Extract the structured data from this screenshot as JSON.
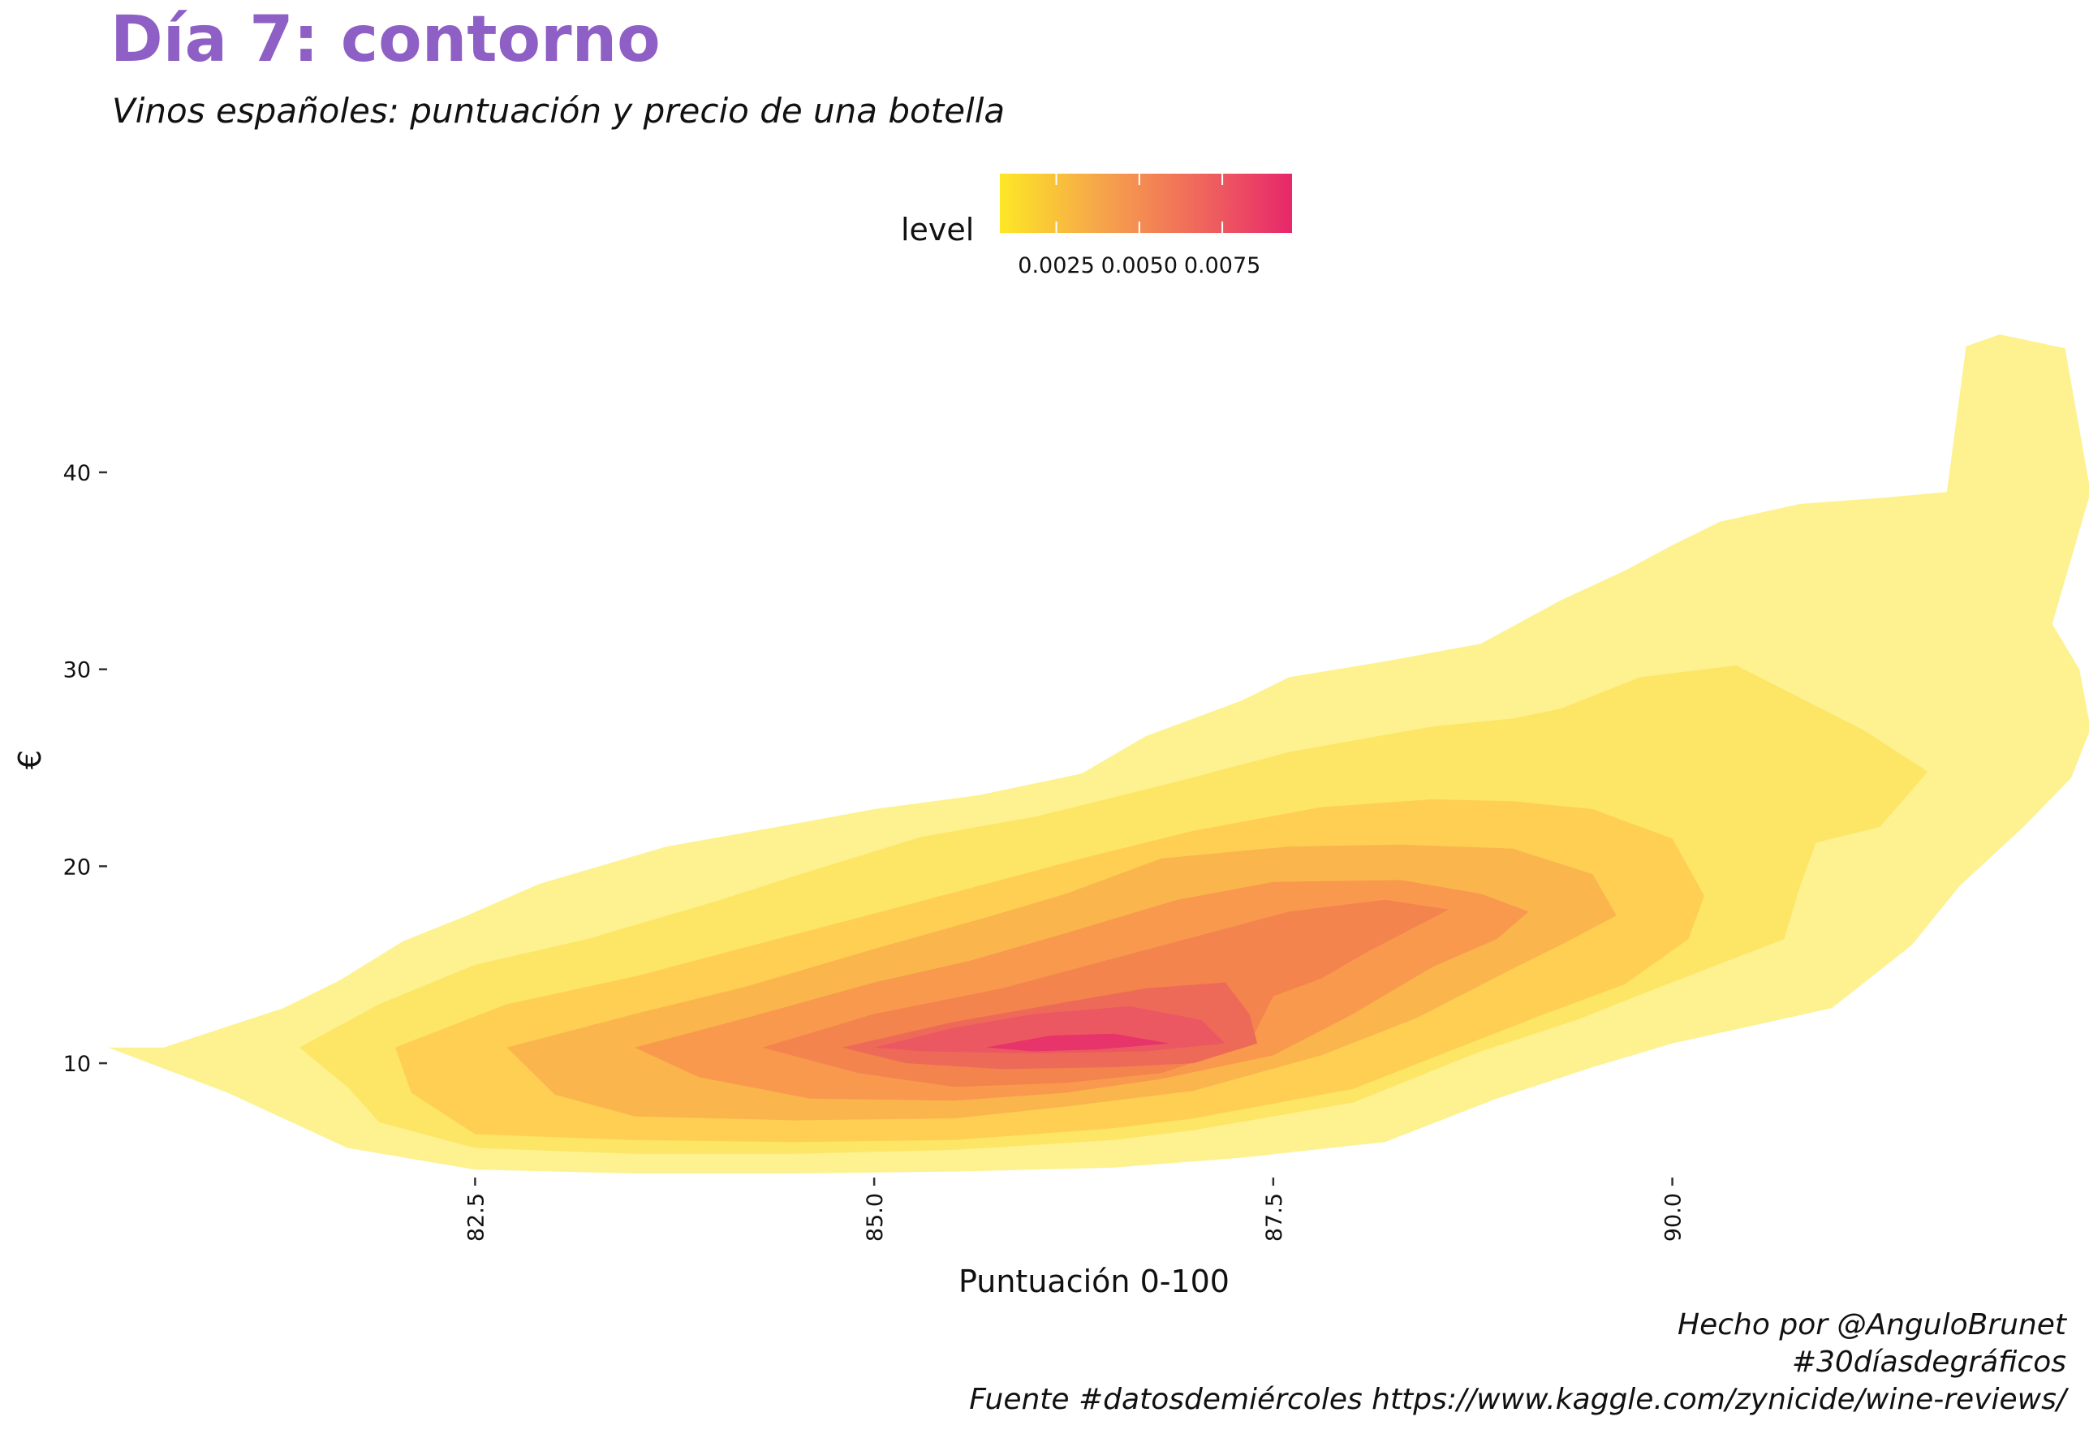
{
  "title": "Día 7: contorno",
  "subtitle": "Vinos españoles: puntuación y precio de una botella",
  "caption": [
    "Hecho por @AnguloBrunet",
    "#30díasdegráficos",
    "Fuente #datosdemiércoles https://www.kaggle.com/zynicide/wine-reviews/"
  ],
  "chart_data": {
    "type": "filled-contour",
    "xlabel": "Puntuación 0-100",
    "ylabel": "€",
    "xlim": [
      80.2,
      92.6
    ],
    "ylim": [
      3.7,
      47.5
    ],
    "x_ticks": [
      82.5,
      85.0,
      87.5,
      90.0
    ],
    "x_tick_labels": [
      "82.5",
      "85.0",
      "87.5",
      "90.0"
    ],
    "y_ticks": [
      10,
      20,
      30,
      40
    ],
    "y_tick_labels": [
      "10",
      "20",
      "30",
      "40"
    ],
    "grid": false,
    "legend": {
      "title": "level",
      "position": "top",
      "ticks": [
        0.0025,
        0.005,
        0.0075
      ],
      "tick_labels": [
        "0.0025",
        "0.0050",
        "0.0075"
      ],
      "range": [
        0.0008,
        0.0096
      ],
      "gradient": [
        "#fde725",
        "#f6a74a",
        "#f06a5c",
        "#e7276b"
      ]
    },
    "levels": [
      {
        "level": 0.001,
        "color": "#fdf28f",
        "polygon": [
          [
            80.55,
            10.8
          ],
          [
            81.3,
            12.8
          ],
          [
            81.65,
            14.2
          ],
          [
            82.05,
            16.2
          ],
          [
            82.45,
            17.5
          ],
          [
            82.9,
            19.1
          ],
          [
            83.7,
            21.0
          ],
          [
            84.6,
            22.3
          ],
          [
            85.0,
            22.9
          ],
          [
            85.65,
            23.6
          ],
          [
            86.3,
            24.7
          ],
          [
            86.7,
            26.6
          ],
          [
            87.3,
            28.4
          ],
          [
            87.6,
            29.6
          ],
          [
            88.2,
            30.4
          ],
          [
            88.8,
            31.3
          ],
          [
            89.3,
            33.5
          ],
          [
            89.7,
            35.0
          ],
          [
            90.0,
            36.3
          ],
          [
            90.3,
            37.5
          ],
          [
            90.8,
            38.4
          ],
          [
            91.3,
            38.7
          ],
          [
            91.72,
            39.0
          ],
          [
            91.84,
            46.4
          ],
          [
            92.05,
            47.0
          ],
          [
            92.46,
            46.3
          ],
          [
            92.62,
            39.0
          ],
          [
            92.38,
            32.3
          ],
          [
            92.55,
            30.0
          ],
          [
            92.62,
            27.0
          ],
          [
            92.5,
            24.5
          ],
          [
            92.2,
            22.0
          ],
          [
            91.8,
            19.0
          ],
          [
            91.5,
            16.0
          ],
          [
            91.0,
            12.8
          ],
          [
            90.0,
            11.0
          ],
          [
            89.5,
            9.8
          ],
          [
            88.9,
            8.2
          ],
          [
            88.2,
            6.0
          ],
          [
            87.3,
            5.2
          ],
          [
            86.5,
            4.7
          ],
          [
            85.5,
            4.5
          ],
          [
            84.5,
            4.4
          ],
          [
            83.5,
            4.4
          ],
          [
            82.5,
            4.6
          ],
          [
            81.7,
            5.7
          ],
          [
            80.95,
            8.5
          ],
          [
            80.2,
            10.8
          ]
        ]
      },
      {
        "level": 0.002,
        "color": "#fde566",
        "polygon": [
          [
            81.4,
            10.8
          ],
          [
            81.9,
            13.0
          ],
          [
            82.5,
            15.0
          ],
          [
            83.2,
            16.3
          ],
          [
            84.0,
            18.2
          ],
          [
            84.5,
            19.5
          ],
          [
            85.3,
            21.5
          ],
          [
            86.0,
            22.5
          ],
          [
            86.9,
            24.3
          ],
          [
            87.6,
            25.8
          ],
          [
            88.5,
            27.1
          ],
          [
            89.0,
            27.5
          ],
          [
            89.3,
            28.0
          ],
          [
            89.8,
            29.6
          ],
          [
            90.4,
            30.2
          ],
          [
            91.2,
            26.9
          ],
          [
            91.6,
            24.8
          ],
          [
            91.3,
            22.0
          ],
          [
            90.9,
            21.2
          ],
          [
            90.8,
            19.0
          ],
          [
            90.7,
            16.3
          ],
          [
            89.9,
            13.8
          ],
          [
            89.4,
            12.2
          ],
          [
            88.8,
            10.6
          ],
          [
            88.0,
            8.0
          ],
          [
            87.0,
            6.6
          ],
          [
            86.5,
            6.1
          ],
          [
            85.5,
            5.6
          ],
          [
            84.5,
            5.4
          ],
          [
            83.5,
            5.4
          ],
          [
            82.5,
            5.7
          ],
          [
            81.9,
            7.0
          ],
          [
            81.7,
            8.8
          ]
        ]
      },
      {
        "level": 0.003,
        "color": "#fecf52",
        "polygon": [
          [
            82.0,
            10.8
          ],
          [
            82.7,
            13.0
          ],
          [
            83.5,
            14.4
          ],
          [
            84.2,
            15.9
          ],
          [
            85.0,
            17.6
          ],
          [
            85.7,
            19.1
          ],
          [
            86.3,
            20.4
          ],
          [
            87.0,
            21.8
          ],
          [
            87.8,
            23.0
          ],
          [
            88.5,
            23.4
          ],
          [
            89.0,
            23.3
          ],
          [
            89.5,
            22.9
          ],
          [
            90.0,
            21.4
          ],
          [
            90.2,
            18.5
          ],
          [
            90.1,
            16.3
          ],
          [
            89.7,
            14.0
          ],
          [
            89.2,
            12.5
          ],
          [
            88.6,
            10.6
          ],
          [
            88.0,
            8.7
          ],
          [
            87.0,
            7.2
          ],
          [
            86.5,
            6.7
          ],
          [
            85.5,
            6.1
          ],
          [
            84.5,
            6.0
          ],
          [
            83.5,
            6.1
          ],
          [
            82.5,
            6.4
          ],
          [
            82.1,
            8.5
          ]
        ]
      },
      {
        "level": 0.004,
        "color": "#fbb54d",
        "polygon": [
          [
            82.7,
            10.8
          ],
          [
            83.5,
            12.5
          ],
          [
            84.2,
            13.9
          ],
          [
            85.0,
            15.8
          ],
          [
            85.7,
            17.4
          ],
          [
            86.2,
            18.6
          ],
          [
            86.8,
            20.4
          ],
          [
            87.6,
            21.0
          ],
          [
            88.3,
            21.1
          ],
          [
            89.0,
            20.9
          ],
          [
            89.5,
            19.6
          ],
          [
            89.65,
            17.5
          ],
          [
            89.3,
            16.0
          ],
          [
            89.0,
            14.8
          ],
          [
            88.4,
            12.3
          ],
          [
            87.8,
            10.4
          ],
          [
            87.0,
            8.6
          ],
          [
            86.2,
            7.8
          ],
          [
            85.5,
            7.2
          ],
          [
            84.5,
            7.1
          ],
          [
            83.5,
            7.3
          ],
          [
            83.0,
            8.4
          ]
        ]
      },
      {
        "level": 0.005,
        "color": "#f8994e",
        "polygon": [
          [
            83.5,
            10.8
          ],
          [
            84.2,
            12.3
          ],
          [
            85.0,
            14.1
          ],
          [
            85.6,
            15.2
          ],
          [
            86.2,
            16.6
          ],
          [
            86.9,
            18.3
          ],
          [
            87.5,
            19.2
          ],
          [
            88.3,
            19.3
          ],
          [
            88.8,
            18.6
          ],
          [
            89.1,
            17.7
          ],
          [
            88.9,
            16.3
          ],
          [
            88.5,
            14.9
          ],
          [
            88.0,
            12.5
          ],
          [
            87.5,
            10.4
          ],
          [
            86.8,
            9.2
          ],
          [
            86.2,
            8.5
          ],
          [
            85.5,
            8.1
          ],
          [
            84.6,
            8.2
          ],
          [
            83.9,
            9.3
          ]
        ]
      },
      {
        "level": 0.006,
        "color": "#f3844e",
        "polygon": [
          [
            84.3,
            10.8
          ],
          [
            85.0,
            12.5
          ],
          [
            85.8,
            13.8
          ],
          [
            86.4,
            15.1
          ],
          [
            87.0,
            16.4
          ],
          [
            87.6,
            17.7
          ],
          [
            88.2,
            18.3
          ],
          [
            88.6,
            17.8
          ],
          [
            88.1,
            15.7
          ],
          [
            87.8,
            14.3
          ],
          [
            87.5,
            13.4
          ],
          [
            87.35,
            11.0
          ],
          [
            86.8,
            9.5
          ],
          [
            86.2,
            9.0
          ],
          [
            85.5,
            8.8
          ],
          [
            84.9,
            9.5
          ]
        ]
      },
      {
        "level": 0.007,
        "color": "#ee6a58",
        "polygon": [
          [
            84.8,
            10.8
          ],
          [
            85.5,
            12.1
          ],
          [
            86.2,
            13.1
          ],
          [
            86.7,
            13.8
          ],
          [
            87.2,
            14.1
          ],
          [
            87.35,
            12.5
          ],
          [
            87.4,
            11.0
          ],
          [
            87.0,
            10.0
          ],
          [
            86.5,
            9.8
          ],
          [
            85.8,
            9.7
          ],
          [
            85.2,
            10.0
          ]
        ]
      },
      {
        "level": 0.008,
        "color": "#ec5862",
        "polygon": [
          [
            85.0,
            10.8
          ],
          [
            85.5,
            11.8
          ],
          [
            86.0,
            12.5
          ],
          [
            86.6,
            12.9
          ],
          [
            87.05,
            12.2
          ],
          [
            87.2,
            11.0
          ],
          [
            86.7,
            10.6
          ],
          [
            86.0,
            10.5
          ],
          [
            85.3,
            10.6
          ]
        ]
      },
      {
        "level": 0.009,
        "color": "#e7346a",
        "polygon": [
          [
            85.7,
            10.8
          ],
          [
            86.1,
            11.4
          ],
          [
            86.5,
            11.5
          ],
          [
            86.85,
            11.0
          ],
          [
            86.4,
            10.7
          ],
          [
            86.0,
            10.6
          ]
        ]
      }
    ]
  }
}
